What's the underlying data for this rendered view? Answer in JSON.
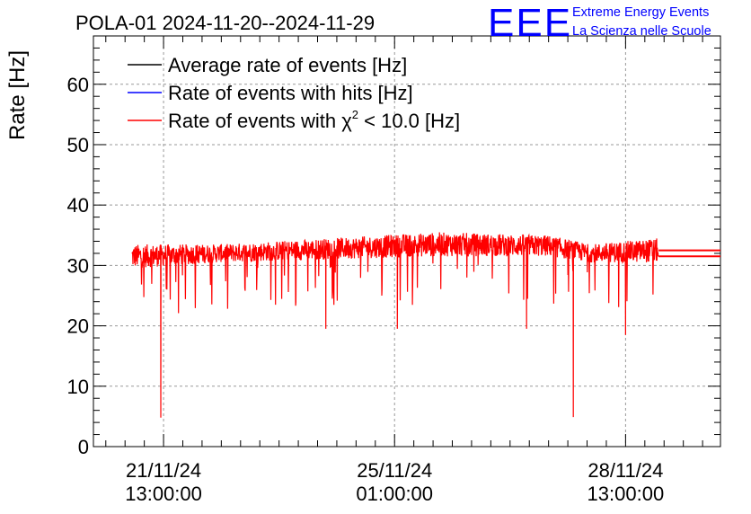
{
  "header": {
    "title": "POLA-01 2024-11-20--2024-11-29",
    "logo_text": "EEE",
    "logo_line1": "Extreme Energy Events",
    "logo_line2": "La Scienza nelle Scuole"
  },
  "colors": {
    "average": "#000000",
    "hits": "#0000ff",
    "chi2": "#ff0000",
    "logo": "#0000ff",
    "grid": "#999999"
  },
  "chart_data": {
    "type": "line",
    "ylabel": "Rate [Hz]",
    "ylim": [
      0,
      68
    ],
    "yticks": [
      0,
      10,
      20,
      30,
      40,
      50,
      60
    ],
    "xlim_hours": [
      -25.5,
      202.5
    ],
    "xticks": [
      {
        "date": "21/11/24",
        "time": "13:00:00"
      },
      {
        "date": "25/11/24",
        "time": "01:00:00"
      },
      {
        "date": "28/11/24",
        "time": "13:00:00"
      }
    ],
    "grid": true,
    "legend_position": "top-left",
    "legend": [
      {
        "label": "Average rate of events [Hz]",
        "color": "#000000"
      },
      {
        "label": "Rate of events with hits [Hz]",
        "color": "#0000ff"
      },
      {
        "label_prefix": "Rate of events with ",
        "label_symbol": "χ",
        "label_sup": "2",
        "label_suffix": " < 10.0 [Hz]",
        "color": "#ff0000"
      }
    ],
    "series": [
      {
        "name": "Rate of events with χ2 < 10.0 [Hz]",
        "color": "#ff0000",
        "x_hours_start": -11.5,
        "x_hours_end": 180,
        "band_profile": [
          {
            "t": -11.5,
            "low": 29.5,
            "high": 33.5
          },
          {
            "t": 20,
            "low": 30.5,
            "high": 33.5
          },
          {
            "t": 60,
            "low": 31.0,
            "high": 34.5
          },
          {
            "t": 100,
            "low": 31.5,
            "high": 35.5
          },
          {
            "t": 140,
            "low": 31.5,
            "high": 35.0
          },
          {
            "t": 155,
            "low": 30.5,
            "high": 33.5
          },
          {
            "t": 180,
            "low": 30.5,
            "high": 34.5
          }
        ],
        "spikes": [
          {
            "t": -1,
            "y": 4.8
          },
          {
            "t": 59,
            "y": 19.5
          },
          {
            "t": 85,
            "y": 19.5
          },
          {
            "t": 132,
            "y": 19.5
          },
          {
            "t": 149,
            "y": 4.9
          },
          {
            "t": 168,
            "y": 18.5
          }
        ],
        "trailing_levels": [
          32.5,
          31.5
        ]
      }
    ]
  }
}
